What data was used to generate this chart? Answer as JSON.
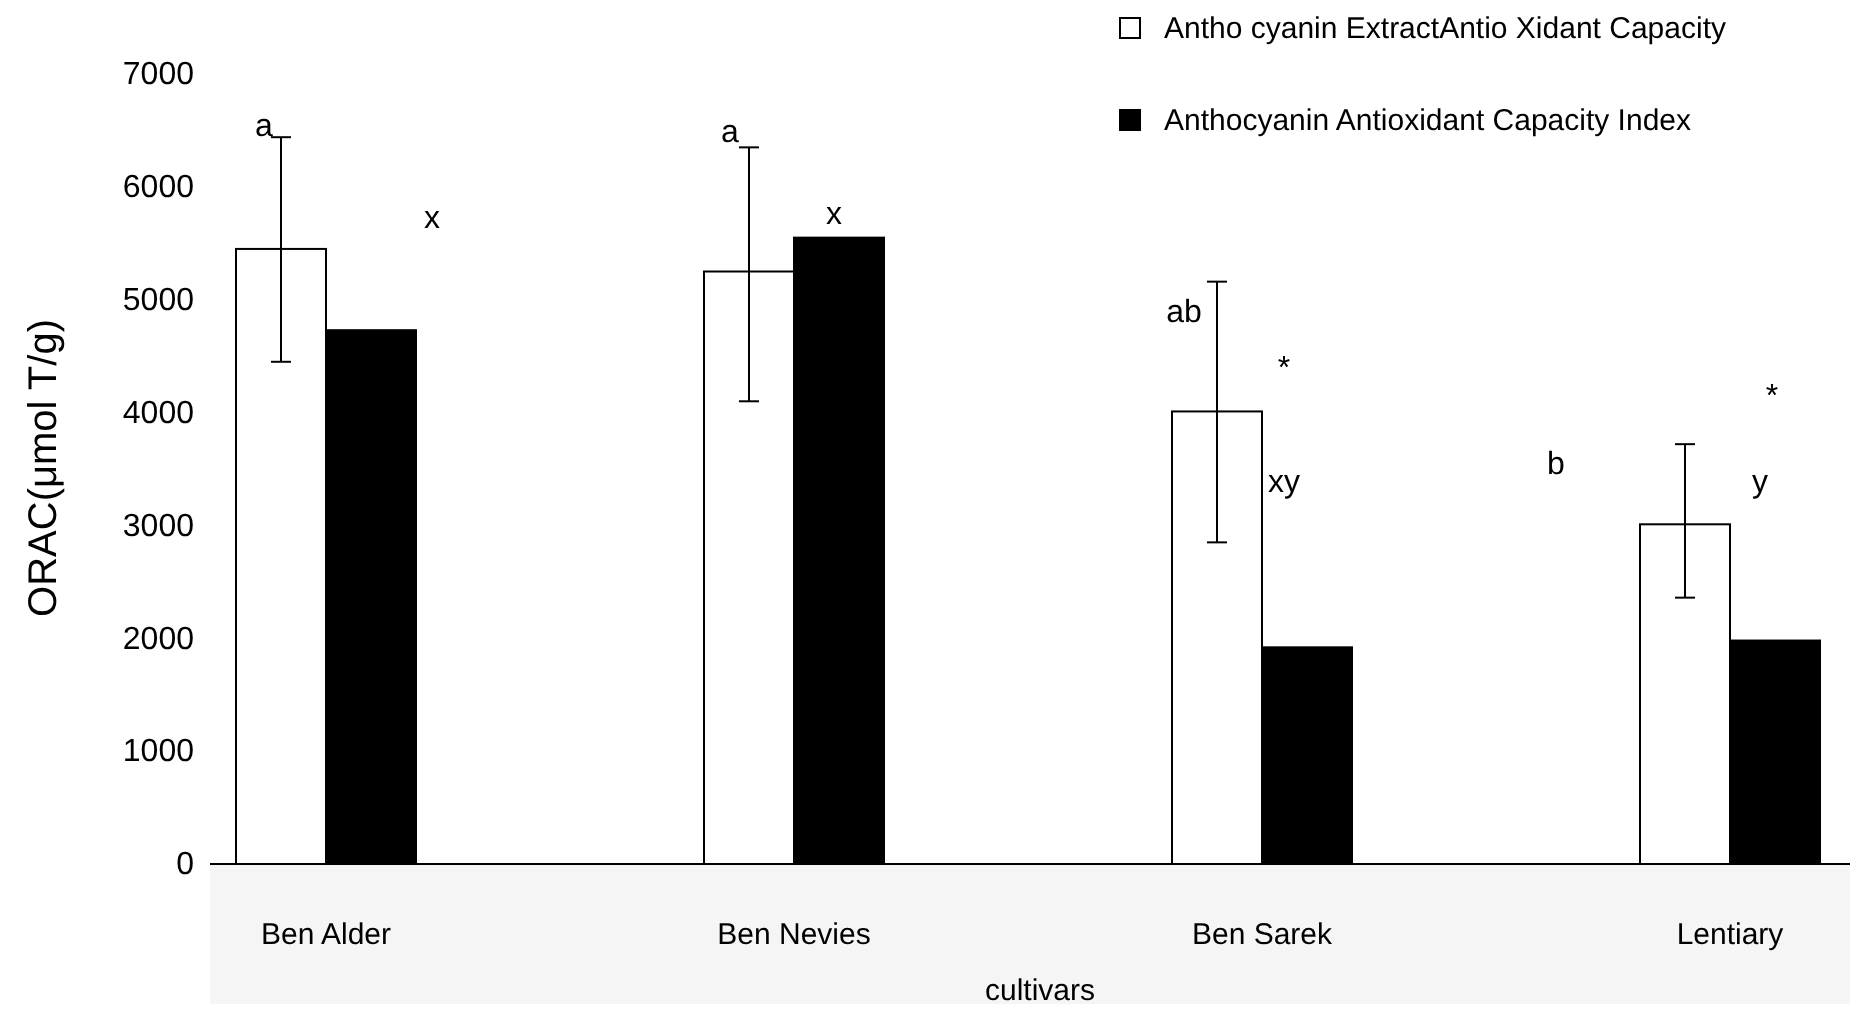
{
  "chart_data": {
    "type": "bar",
    "xlabel": "cultivars",
    "ylabel": "ORAC(μmol T/g)",
    "categories": [
      "Ben Alder",
      "Ben Nevies",
      "Ben Sarek",
      "Lentiary"
    ],
    "series": [
      {
        "name": "Antho cyanin ExtractAntio Xidant Capacity",
        "color": "#ffffff",
        "values": [
          5450,
          5250,
          4010,
          3010
        ],
        "errors": [
          [
            4450,
            6440
          ],
          [
            4100,
            6350
          ],
          [
            2850,
            5160
          ],
          [
            2360,
            3720
          ]
        ]
      },
      {
        "name": "Anthocyanin Antioxidant Capacity Index",
        "color": "#000000",
        "values": [
          4730,
          5550,
          1920,
          1980
        ]
      }
    ],
    "ylim": [
      0,
      7000
    ],
    "yticks": [
      0,
      1000,
      2000,
      3000,
      4000,
      5000,
      6000,
      7000
    ],
    "grid": false,
    "legend": "top right",
    "annotations": [
      "a",
      "x",
      "a",
      "x",
      "ab",
      "*",
      "xy",
      "b",
      "*",
      "y"
    ]
  }
}
